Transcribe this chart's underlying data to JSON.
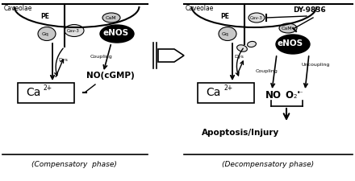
{
  "bg_color": "#ffffff",
  "left_panel": {
    "label": "(Compensatory  phase)",
    "caveolae_label": "Caveolae",
    "PE_label": "PE",
    "Gq_label": "Gq",
    "Cav3_label": "Cav-3",
    "CaM_label": "CaM",
    "eNOS_label": "eNOS",
    "Dys_label": "Dys",
    "coupling_label": "Coupling",
    "NO_label": "NO(cGMP)",
    "Ca_label": "Ca",
    "sup_label": "2+"
  },
  "right_panel": {
    "label": "(Decompensatory phase)",
    "caveolae_label": "Caveolae",
    "DY_label": "DY-9836",
    "PE_label": "PE",
    "Gq_label": "Gq",
    "Cav3_label": "Cav-3",
    "CaM_label": "CaM",
    "eNOS_label": "eNOS",
    "Dys_label": "Dys",
    "coupling_label": "Coupling",
    "uncoupling_label": "Uncoupling",
    "NO_label": "NO",
    "O2_label": "O",
    "O2_sup": "2",
    "O2_dot": "•⁻",
    "apoptosis_label": "Apoptosis/Injury",
    "Ca_label": "Ca",
    "sup_label": "2+"
  }
}
